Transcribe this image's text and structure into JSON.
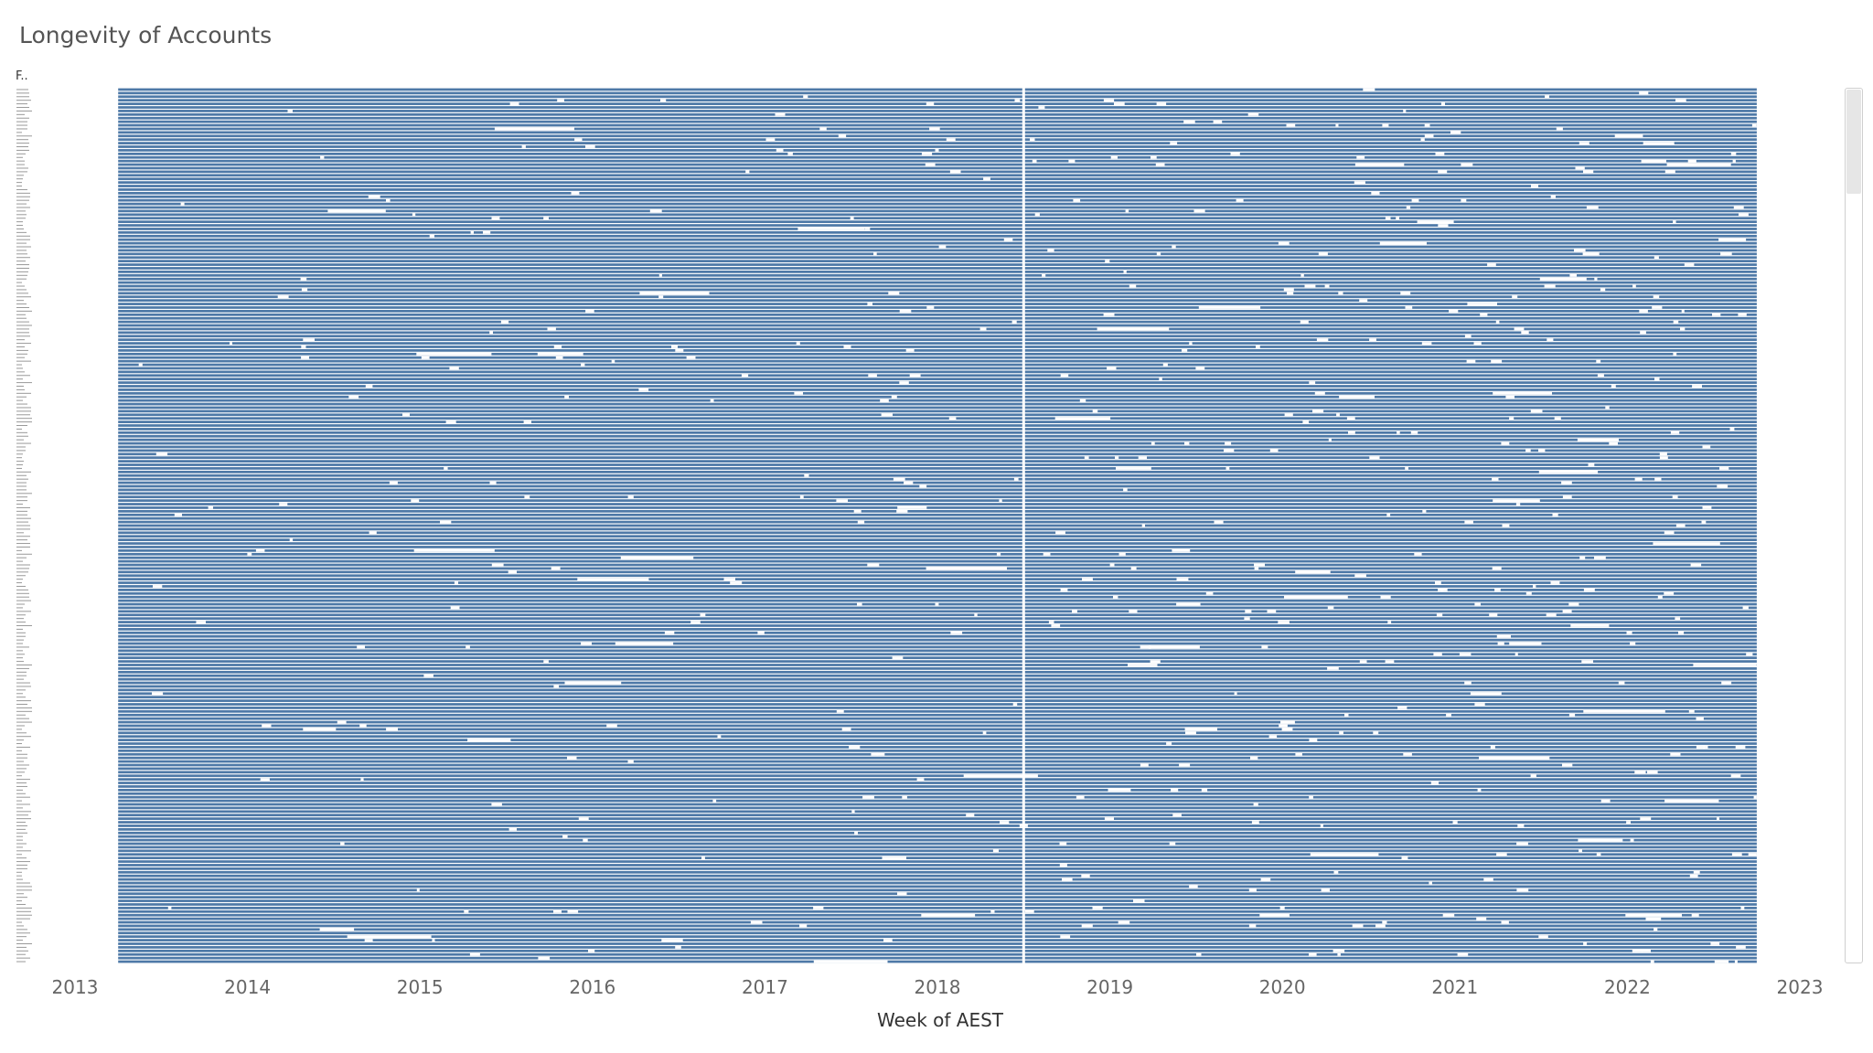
{
  "title": "Longevity of Accounts",
  "row_header": "F..",
  "chart_data": {
    "type": "gantt",
    "title": "Longevity of Accounts",
    "xlabel": "Week of AEST",
    "ylabel": "",
    "x_ticks": [
      "2013",
      "2014",
      "2015",
      "2016",
      "2017",
      "2018",
      "2019",
      "2020",
      "2021",
      "2022",
      "2023"
    ],
    "xlim": [
      "2013-01-01",
      "2023-01-01"
    ],
    "bar_color": "#4e79a7",
    "gap_color": "#ffffff",
    "account_count": 245,
    "typical_account_span": [
      "2013-04",
      "2022-10"
    ],
    "reference_line": {
      "date": "2018-07",
      "color": "#ffffff"
    },
    "note_visible_gaps": "Short white gaps appear along many rows, denser after 2019"
  }
}
